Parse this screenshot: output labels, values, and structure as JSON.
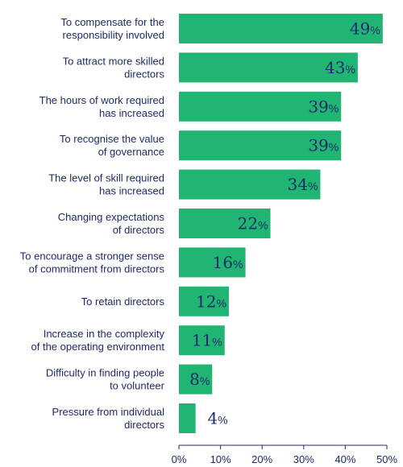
{
  "chart_data": {
    "type": "bar",
    "orientation": "horizontal",
    "categories": [
      [
        "To compensate for the",
        "responsibility involved"
      ],
      [
        "To attract more skilled",
        "directors"
      ],
      [
        "The hours of work required",
        "has increased"
      ],
      [
        "To recognise the value",
        "of governance"
      ],
      [
        "The level of skill required",
        "has increased"
      ],
      [
        "Changing expectations",
        "of directors"
      ],
      [
        "To encourage a stronger sense",
        "of commitment from directors"
      ],
      [
        "To retain directors"
      ],
      [
        "Increase in the complexity",
        "of the operating environment"
      ],
      [
        "Difficulty in finding people",
        "to volunteer"
      ],
      [
        "Pressure from individual",
        "directors"
      ]
    ],
    "values": [
      49,
      43,
      39,
      39,
      34,
      22,
      16,
      12,
      11,
      8,
      4
    ],
    "value_suffix": "%",
    "xlim": [
      0,
      50
    ],
    "xticks": [
      "0%",
      "10%",
      "20%",
      "30%",
      "40%",
      "50%"
    ],
    "grid": false,
    "colors": {
      "bar": "#21b573",
      "text": "#1f2a6b",
      "axis": "#1f2a6b"
    }
  }
}
